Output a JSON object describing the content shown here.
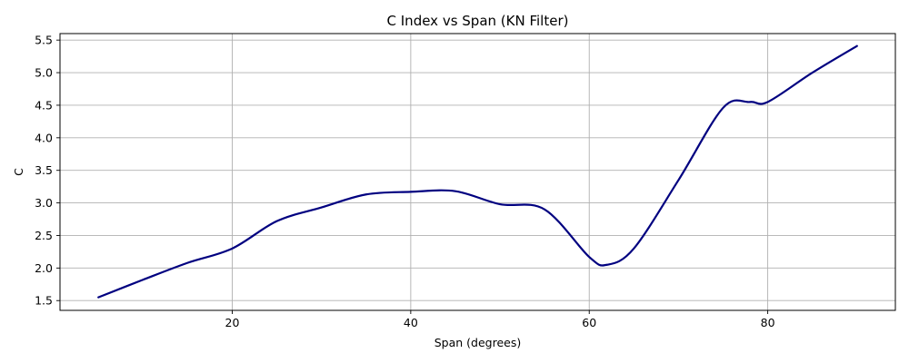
{
  "chart_data": {
    "type": "line",
    "title": "C Index vs Span (KN Filter)",
    "xlabel": "Span (degrees)",
    "ylabel": "C",
    "xlim": [
      0.7,
      94.3
    ],
    "ylim": [
      1.35,
      5.6
    ],
    "xticks": [
      20,
      40,
      60,
      80
    ],
    "yticks": [
      1.5,
      2.0,
      2.5,
      3.0,
      3.5,
      4.0,
      4.5,
      5.0,
      5.5
    ],
    "grid": true,
    "series": [
      {
        "color": "#000080",
        "x": [
          5,
          10,
          15,
          20,
          25,
          30,
          35,
          40,
          45,
          50,
          55,
          60,
          62,
          65,
          70,
          75,
          78,
          80,
          85,
          90
        ],
        "y": [
          1.55,
          1.82,
          2.08,
          2.3,
          2.72,
          2.93,
          3.13,
          3.17,
          3.18,
          2.98,
          2.9,
          2.17,
          2.05,
          2.3,
          3.35,
          4.46,
          4.55,
          4.55,
          5.0,
          5.41
        ]
      }
    ]
  }
}
